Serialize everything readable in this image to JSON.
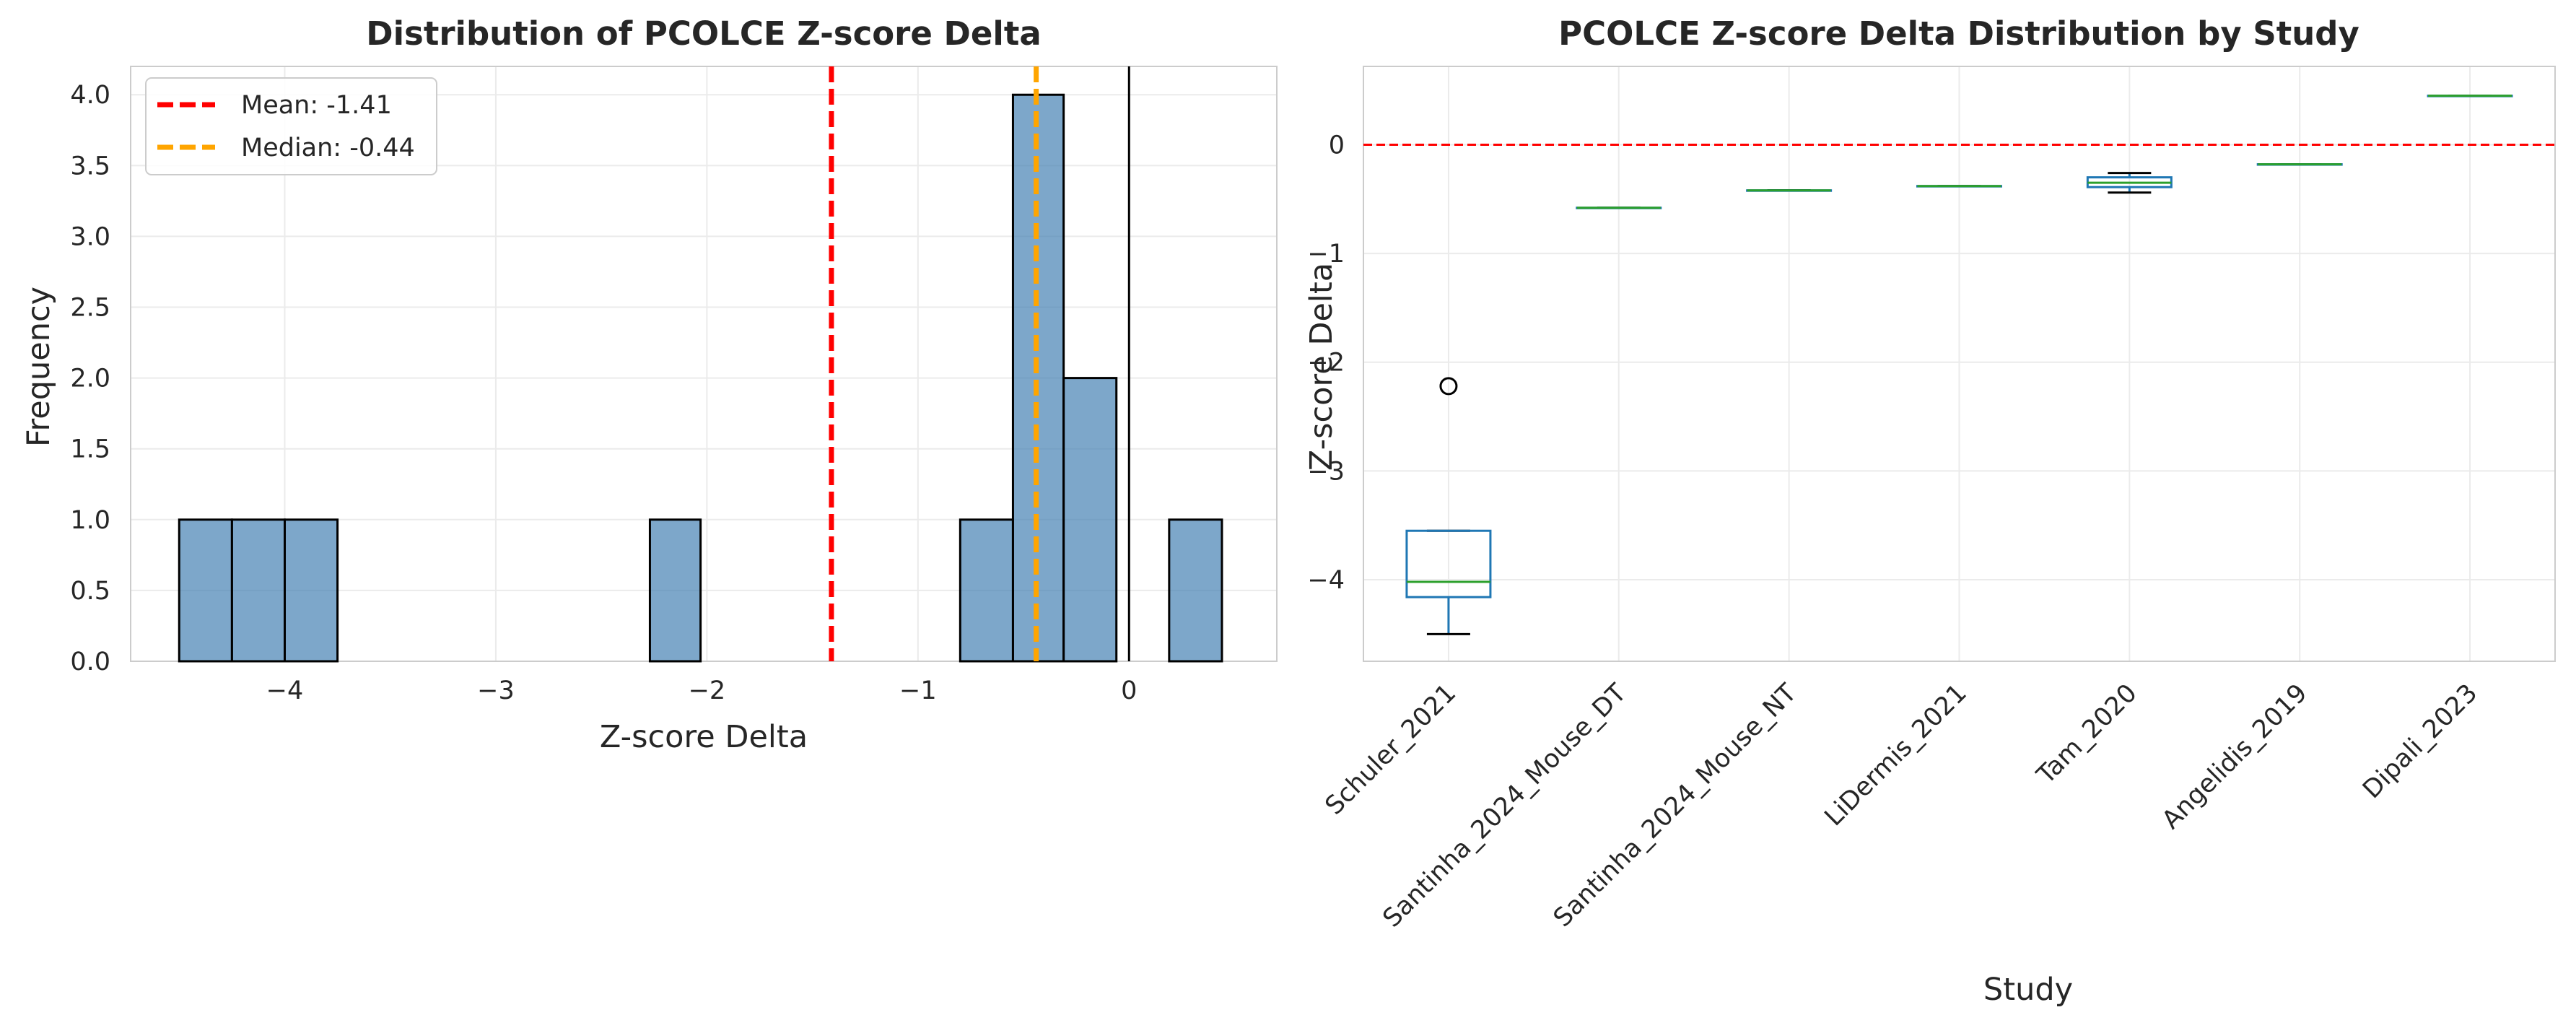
{
  "chart_data": [
    {
      "type": "histogram",
      "title": "Distribution of PCOLCE Z-score Delta",
      "xlabel": "Z-score Delta",
      "ylabel": "Frequency",
      "xlim": [
        -4.73,
        0.7
      ],
      "ylim": [
        0,
        4.2
      ],
      "grid": true,
      "bins": [
        {
          "x0": -4.5,
          "x1": -4.25,
          "count": 1
        },
        {
          "x0": -4.25,
          "x1": -4.0,
          "count": 1
        },
        {
          "x0": -4.0,
          "x1": -3.75,
          "count": 1
        },
        {
          "x0": -2.27,
          "x1": -2.03,
          "count": 1
        },
        {
          "x0": -0.8,
          "x1": -0.55,
          "count": 1
        },
        {
          "x0": -0.55,
          "x1": -0.31,
          "count": 4
        },
        {
          "x0": -0.31,
          "x1": -0.06,
          "count": 2
        },
        {
          "x0": 0.19,
          "x1": 0.44,
          "count": 1
        }
      ],
      "reference_lines": [
        {
          "x": -1.41,
          "label": "Mean: -1.41",
          "color": "#ff0000",
          "style": "dashed"
        },
        {
          "x": -0.44,
          "label": "Median: -0.44",
          "color": "#ffa500",
          "style": "dashed"
        },
        {
          "x": 0,
          "label": "",
          "color": "#000000",
          "style": "solid"
        }
      ],
      "legend_position": "upper-left",
      "x_ticks": [
        {
          "value": -4,
          "label": "−4"
        },
        {
          "value": -3,
          "label": "−3"
        },
        {
          "value": -2,
          "label": "−2"
        },
        {
          "value": -1,
          "label": "−1"
        },
        {
          "value": 0,
          "label": "0"
        }
      ],
      "y_ticks": [
        {
          "value": 0,
          "label": "0.0"
        },
        {
          "value": 0.5,
          "label": "0.5"
        },
        {
          "value": 1,
          "label": "1.0"
        },
        {
          "value": 1.5,
          "label": "1.5"
        },
        {
          "value": 2,
          "label": "2.0"
        },
        {
          "value": 2.5,
          "label": "2.5"
        },
        {
          "value": 3,
          "label": "3.0"
        },
        {
          "value": 3.5,
          "label": "3.5"
        },
        {
          "value": 4,
          "label": "4.0"
        }
      ],
      "bar_color": "#4682b4",
      "bar_edge": "#000000"
    },
    {
      "type": "box",
      "title": "PCOLCE Z-score Delta Distribution by Study",
      "xlabel": "Study",
      "ylabel": "Z-score Delta",
      "ylim": [
        -4.75,
        0.72
      ],
      "grid": true,
      "reference_line": {
        "y": 0,
        "color": "#ff0000",
        "style": "dashed"
      },
      "categories": [
        "Schuler_2021",
        "Santinha_2024_Mouse_DT",
        "Santinha_2024_Mouse_NT",
        "LiDermis_2021",
        "Tam_2020",
        "Angelidis_2019",
        "Dipali_2023"
      ],
      "boxes": [
        {
          "whislo": -4.5,
          "q1": -4.16,
          "med": -4.02,
          "q3": -3.55,
          "whishi": -3.55,
          "fliers": [
            -2.22
          ]
        },
        {
          "whislo": -0.58,
          "q1": -0.58,
          "med": -0.58,
          "q3": -0.58,
          "whishi": -0.58,
          "fliers": []
        },
        {
          "whislo": -0.42,
          "q1": -0.42,
          "med": -0.42,
          "q3": -0.42,
          "whishi": -0.42,
          "fliers": []
        },
        {
          "whislo": -0.38,
          "q1": -0.38,
          "med": -0.38,
          "q3": -0.38,
          "whishi": -0.38,
          "fliers": []
        },
        {
          "whislo": -0.44,
          "q1": -0.39,
          "med": -0.35,
          "q3": -0.3,
          "whishi": -0.26,
          "fliers": []
        },
        {
          "whislo": -0.18,
          "q1": -0.18,
          "med": -0.18,
          "q3": -0.18,
          "whishi": -0.18,
          "fliers": []
        },
        {
          "whislo": 0.45,
          "q1": 0.45,
          "med": 0.45,
          "q3": 0.45,
          "whishi": 0.45,
          "fliers": []
        }
      ],
      "y_ticks": [
        {
          "value": 0,
          "label": "0"
        },
        {
          "value": -1,
          "label": "−1"
        },
        {
          "value": -2,
          "label": "−2"
        },
        {
          "value": -3,
          "label": "−3"
        },
        {
          "value": -4,
          "label": "−4"
        }
      ],
      "box_color": "#1f77b4",
      "median_color": "#2ca02c",
      "whisker_color": "#000000"
    }
  ]
}
